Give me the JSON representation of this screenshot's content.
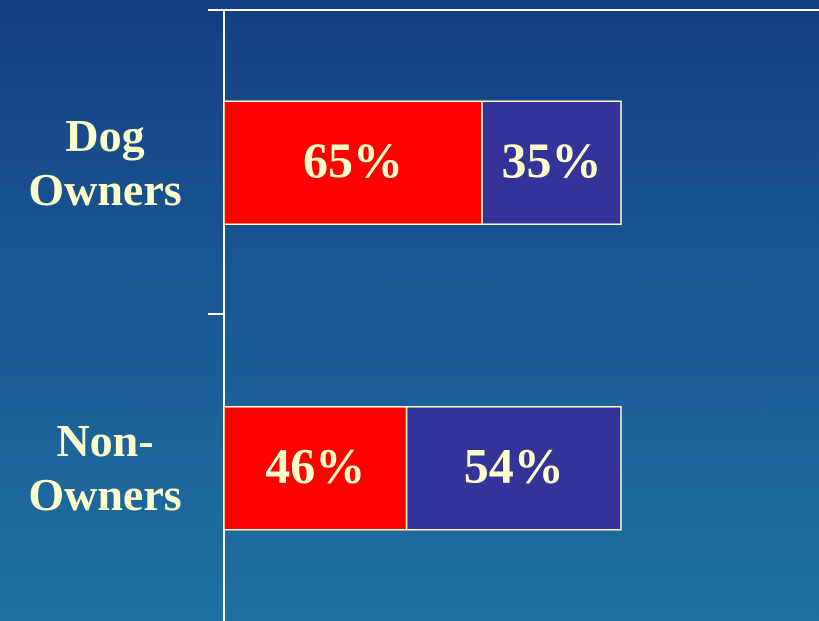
{
  "chart_data": {
    "type": "stacked-bar-horizontal",
    "categories": [
      "Dog Owners",
      "Non-Owners"
    ],
    "series": [
      {
        "color": "#ff0000",
        "values": [
          65,
          46
        ],
        "value_labels": [
          "65%",
          "46%"
        ]
      },
      {
        "color": "#333399",
        "values": [
          35,
          54
        ],
        "value_labels": [
          "35%",
          "54%"
        ]
      }
    ]
  }
}
